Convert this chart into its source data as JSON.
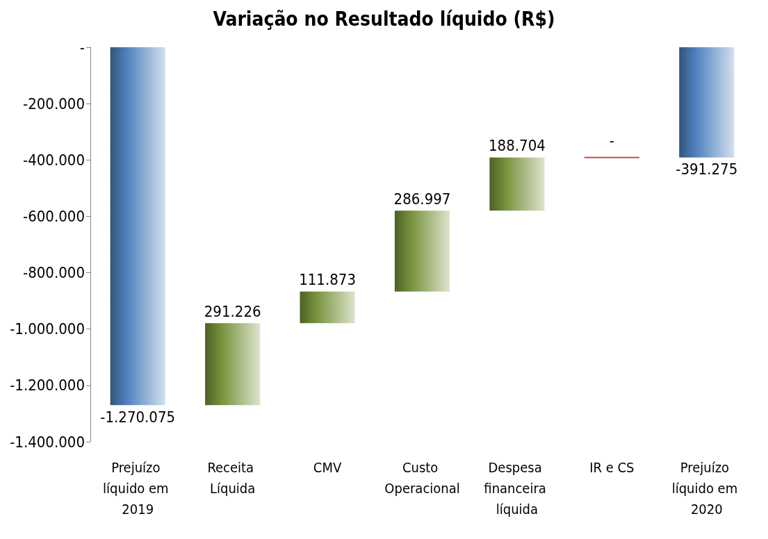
{
  "chart_data": {
    "type": "bar",
    "title": "Variação no Resultado líquido (R$)",
    "categories": [
      "Prejuízo líquido em 2019",
      "Receita Líquida",
      "CMV",
      "Custo Operacional",
      "Despesa financeira líquida",
      "IR e CS",
      "Prejuízo líquido em 2020"
    ],
    "values": [
      -1270075,
      291226,
      111873,
      286997,
      188704,
      0,
      -391275
    ],
    "base": [
      0,
      -1270075,
      -978849,
      -866976,
      -579979,
      -391275,
      0
    ],
    "colors": [
      "#4f81bd",
      "#77933c",
      "#77933c",
      "#77933c",
      "#77933c",
      "#c0504d",
      "#4f81bd"
    ],
    "value_labels": [
      "-1.270.075",
      "291.226",
      "111.873",
      "286.997",
      "188.704",
      "-",
      "-391.275"
    ],
    "ylim": [
      -1400000,
      0
    ],
    "yticks": [
      {
        "value": -1400000,
        "label": "-1.400.000"
      },
      {
        "value": -1200000,
        "label": "-1.200.000"
      },
      {
        "value": -1000000,
        "label": "-1.000.000"
      },
      {
        "value": -800000,
        "label": "-800.000"
      },
      {
        "value": -600000,
        "label": "-600.000"
      },
      {
        "value": -400000,
        "label": "-400.000"
      },
      {
        "value": -200000,
        "label": "-200.000"
      },
      {
        "value": 0,
        "label": "-"
      }
    ],
    "grid": false
  }
}
